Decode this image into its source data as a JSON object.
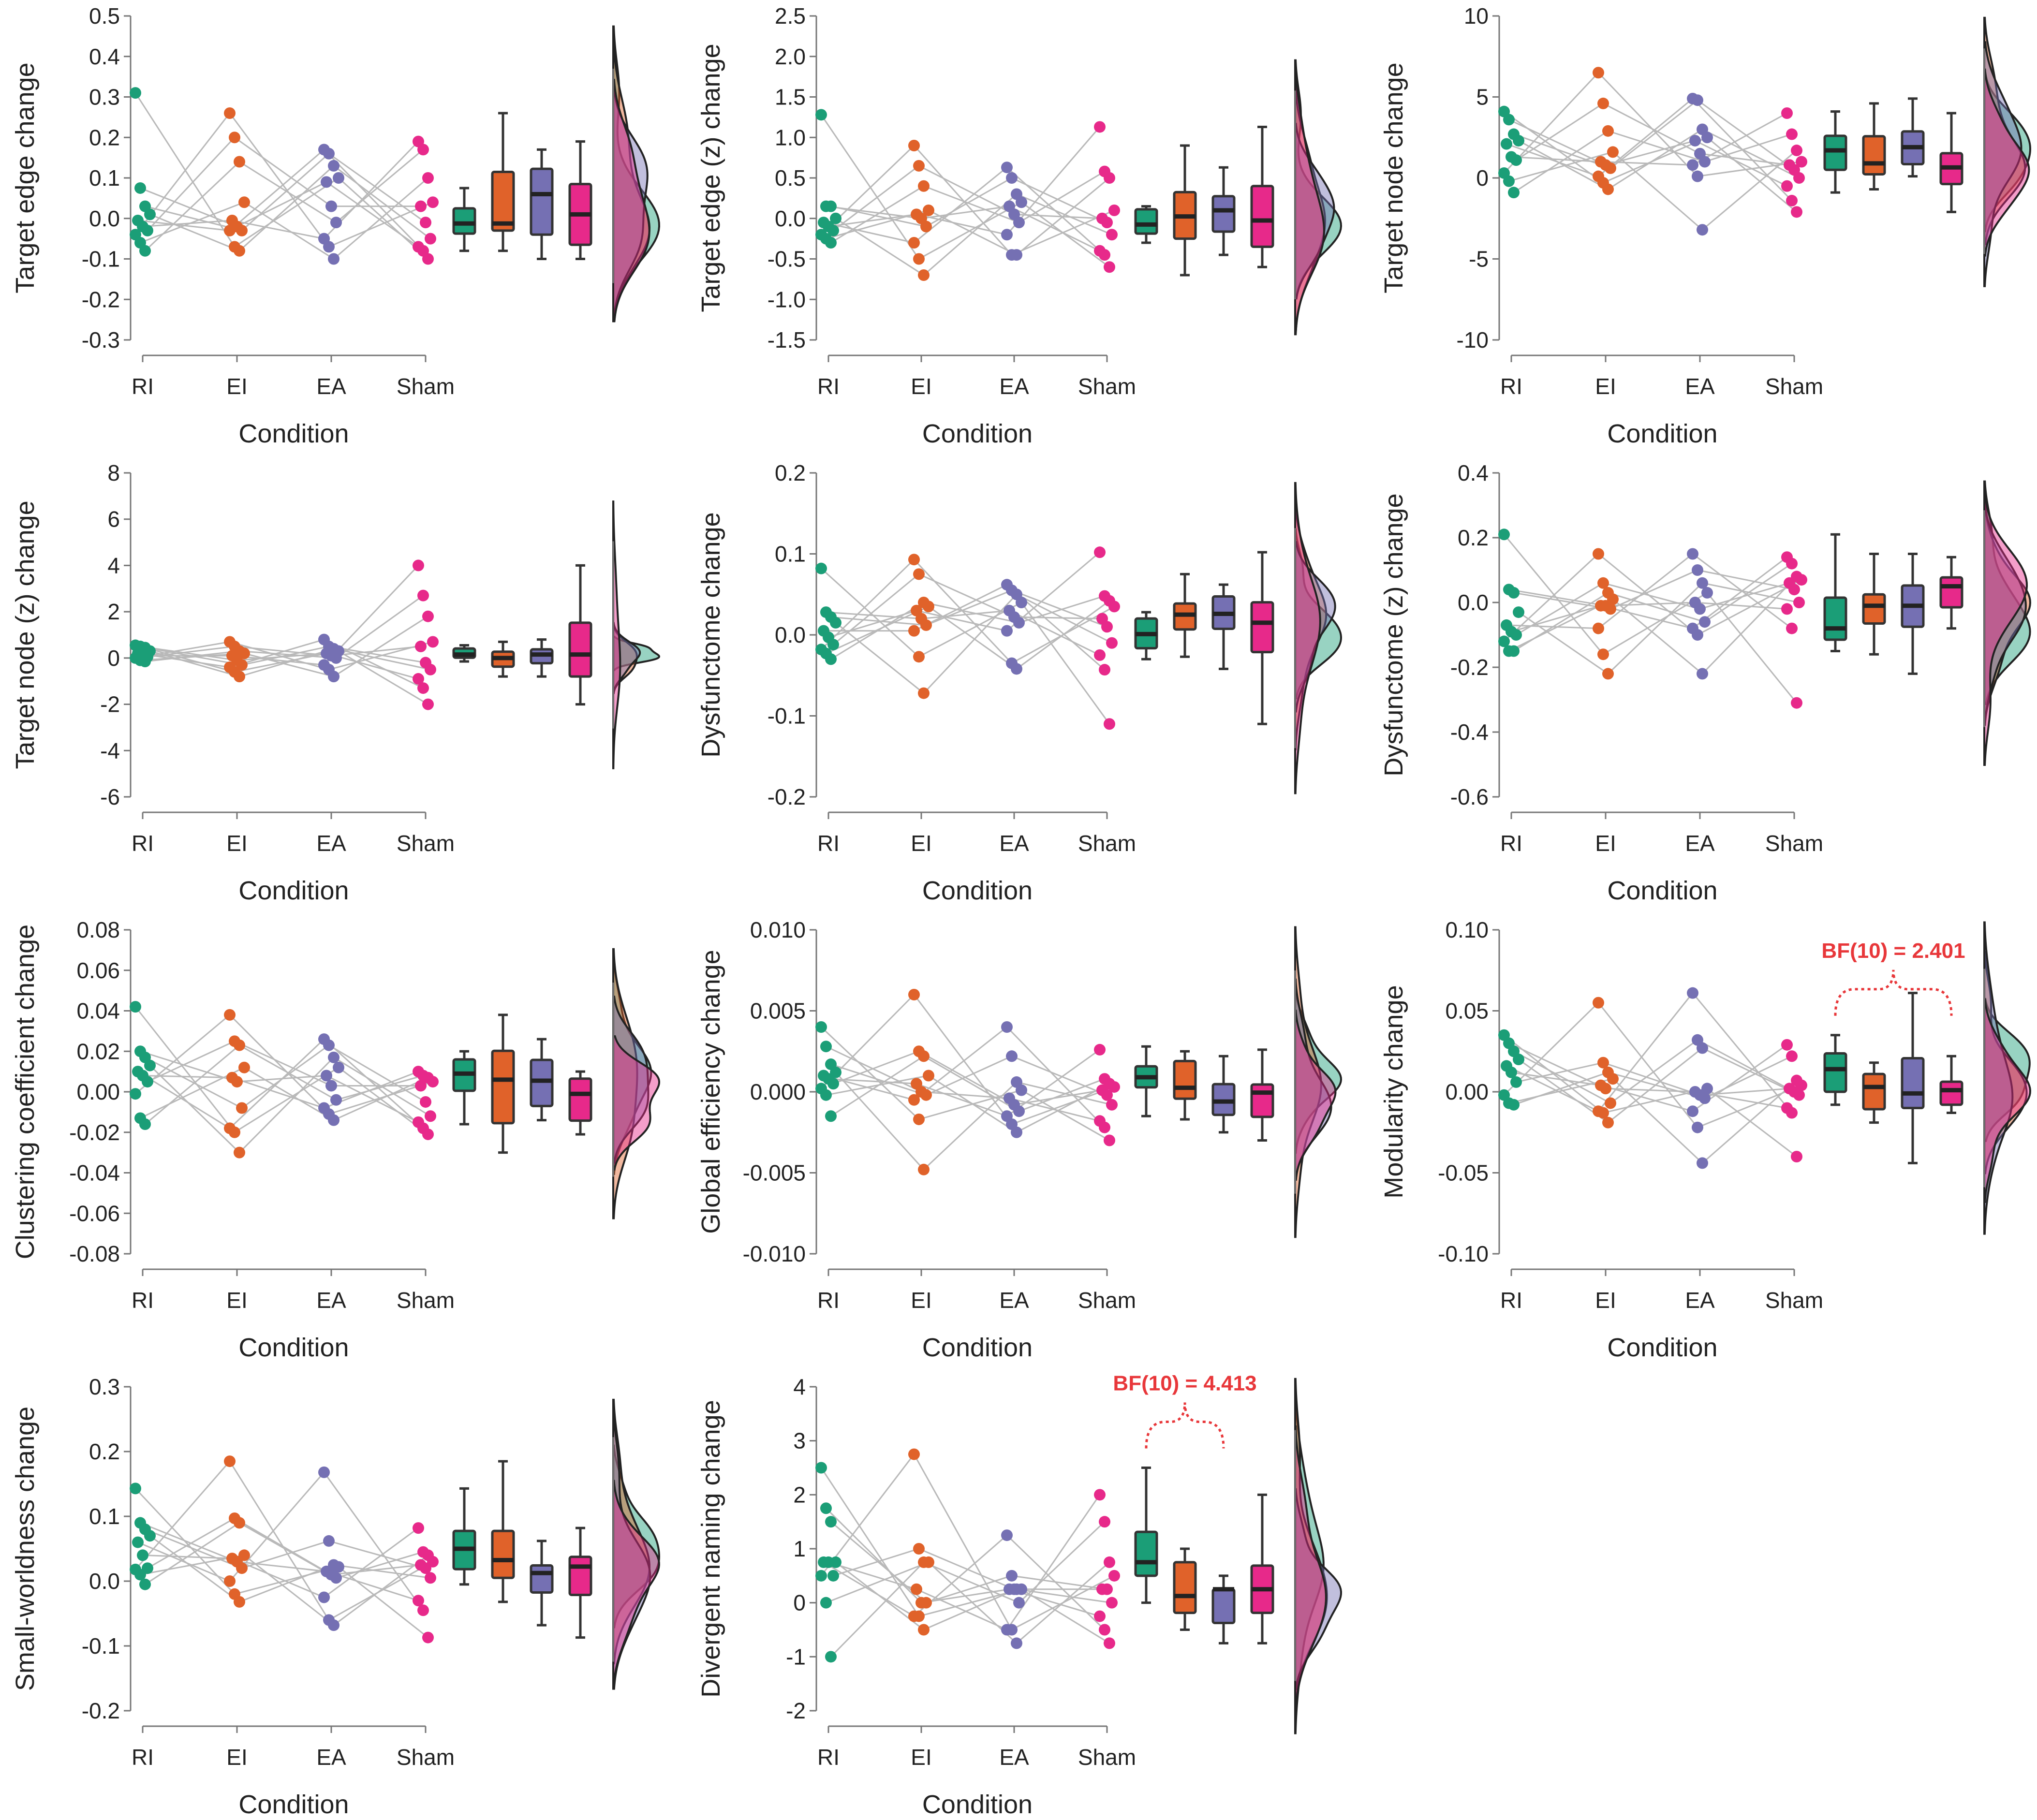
{
  "figure": {
    "x_title": "Condition",
    "conditions": [
      "RI",
      "EI",
      "EA",
      "Sham"
    ],
    "colors": {
      "RI": "#1b9e77",
      "EI": "#e0622a",
      "EA": "#7570b3",
      "Sham": "#e7298a"
    }
  },
  "chart_data": [
    {
      "type": "scatter",
      "title": "",
      "xlabel": "Condition",
      "ylabel": "Target edge change",
      "ylim": [
        -0.3,
        0.5
      ],
      "yticks": [
        -0.3,
        -0.2,
        -0.1,
        0.0,
        0.1,
        0.2,
        0.3,
        0.4,
        0.5
      ],
      "yticklabels": [
        "-0.3",
        "-0.2",
        "-0.1",
        "0.0",
        "0.1",
        "0.2",
        "0.3",
        "0.4",
        "0.5"
      ],
      "categories": [
        "RI",
        "EI",
        "EA",
        "Sham"
      ],
      "series": [
        {
          "name": "RI",
          "values": [
            0.31,
            0.075,
            0.03,
            0.01,
            -0.005,
            -0.02,
            -0.03,
            -0.04,
            -0.06,
            -0.08
          ]
        },
        {
          "name": "EI",
          "values": [
            0.26,
            0.2,
            0.14,
            0.04,
            -0.005,
            -0.02,
            -0.03,
            -0.03,
            -0.07,
            -0.08
          ]
        },
        {
          "name": "EA",
          "values": [
            0.17,
            0.16,
            0.13,
            0.1,
            0.09,
            0.03,
            -0.01,
            -0.05,
            -0.07,
            -0.1
          ]
        },
        {
          "name": "Sham",
          "values": [
            0.19,
            0.17,
            0.1,
            0.04,
            0.03,
            -0.01,
            -0.05,
            -0.07,
            -0.08,
            -0.1
          ]
        }
      ],
      "annotation": null
    },
    {
      "type": "scatter",
      "title": "",
      "xlabel": "Condition",
      "ylabel": "Target edge (z) change",
      "ylim": [
        -1.5,
        2.5
      ],
      "yticks": [
        -1.5,
        -1.0,
        -0.5,
        0.0,
        0.5,
        1.0,
        1.5,
        2.0,
        2.5
      ],
      "yticklabels": [
        "-1.5",
        "-1.0",
        "-0.5",
        "0.0",
        "0.5",
        "1.0",
        "1.5",
        "2.0",
        "2.5"
      ],
      "categories": [
        "RI",
        "EI",
        "EA",
        "Sham"
      ],
      "series": [
        {
          "name": "RI",
          "values": [
            1.28,
            0.15,
            0.15,
            0.0,
            -0.05,
            -0.1,
            -0.15,
            -0.2,
            -0.25,
            -0.3
          ]
        },
        {
          "name": "EI",
          "values": [
            0.9,
            0.65,
            0.4,
            0.1,
            0.05,
            0.0,
            -0.1,
            -0.3,
            -0.5,
            -0.7
          ]
        },
        {
          "name": "EA",
          "values": [
            0.63,
            0.5,
            0.3,
            0.2,
            0.15,
            0.05,
            -0.05,
            -0.2,
            -0.45,
            -0.45
          ]
        },
        {
          "name": "Sham",
          "values": [
            1.13,
            0.58,
            0.5,
            0.1,
            0.0,
            -0.05,
            -0.2,
            -0.4,
            -0.45,
            -0.6
          ]
        }
      ],
      "annotation": null
    },
    {
      "type": "scatter",
      "title": "",
      "xlabel": "Condition",
      "ylabel": "Target node change",
      "ylim": [
        -10,
        10
      ],
      "yticks": [
        -10,
        -5,
        0,
        5,
        10
      ],
      "yticklabels": [
        "-10",
        "-5",
        "0",
        "5",
        "10"
      ],
      "categories": [
        "RI",
        "EI",
        "EA",
        "Sham"
      ],
      "series": [
        {
          "name": "RI",
          "values": [
            4.1,
            3.6,
            2.7,
            2.3,
            2.1,
            1.3,
            1.1,
            0.3,
            -0.2,
            -0.9
          ]
        },
        {
          "name": "EI",
          "values": [
            6.5,
            4.6,
            2.9,
            1.6,
            1.0,
            0.8,
            0.6,
            0.1,
            -0.3,
            -0.7
          ]
        },
        {
          "name": "EA",
          "values": [
            4.9,
            4.8,
            3.0,
            2.5,
            2.3,
            1.5,
            1.0,
            0.8,
            0.1,
            -3.2
          ]
        },
        {
          "name": "Sham",
          "values": [
            4.0,
            2.7,
            1.7,
            1.0,
            0.8,
            0.5,
            0.0,
            -0.5,
            -1.4,
            -2.1
          ]
        }
      ],
      "annotation": null
    },
    {
      "type": "scatter",
      "title": "",
      "xlabel": "Condition",
      "ylabel": "Target node (z) change",
      "ylim": [
        -6,
        8
      ],
      "yticks": [
        -6,
        -4,
        -2,
        0,
        2,
        4,
        6,
        8
      ],
      "yticklabels": [
        "-6",
        "-4",
        "-2",
        "0",
        "2",
        "4",
        "6",
        "8"
      ],
      "categories": [
        "RI",
        "EI",
        "EA",
        "Sham"
      ],
      "series": [
        {
          "name": "RI",
          "values": [
            0.55,
            0.5,
            0.45,
            0.3,
            0.2,
            0.1,
            0.05,
            0.0,
            -0.1,
            -0.15
          ]
        },
        {
          "name": "EI",
          "values": [
            0.7,
            0.5,
            0.3,
            0.2,
            0.1,
            -0.1,
            -0.3,
            -0.4,
            -0.6,
            -0.8
          ]
        },
        {
          "name": "EA",
          "values": [
            0.8,
            0.5,
            0.4,
            0.3,
            0.2,
            0.1,
            0.0,
            -0.3,
            -0.5,
            -0.8
          ]
        },
        {
          "name": "Sham",
          "values": [
            4.0,
            2.7,
            1.8,
            0.7,
            0.5,
            -0.2,
            -0.5,
            -0.9,
            -1.3,
            -2.0
          ]
        }
      ],
      "annotation": null
    },
    {
      "type": "scatter",
      "title": "",
      "xlabel": "Condition",
      "ylabel": "Dysfunctome change",
      "ylim": [
        -0.2,
        0.2
      ],
      "yticks": [
        -0.2,
        -0.1,
        0.0,
        0.1,
        0.2
      ],
      "yticklabels": [
        "-0.2",
        "-0.1",
        "0.0",
        "0.1",
        "0.2"
      ],
      "categories": [
        "RI",
        "EI",
        "EA",
        "Sham"
      ],
      "series": [
        {
          "name": "RI",
          "values": [
            0.082,
            0.028,
            0.022,
            0.015,
            0.005,
            -0.003,
            -0.012,
            -0.018,
            -0.023,
            -0.03
          ]
        },
        {
          "name": "EI",
          "values": [
            0.093,
            0.075,
            0.04,
            0.035,
            0.03,
            0.02,
            0.012,
            0.005,
            -0.027,
            -0.072
          ]
        },
        {
          "name": "EA",
          "values": [
            0.062,
            0.055,
            0.05,
            0.04,
            0.03,
            0.022,
            0.015,
            0.005,
            -0.035,
            -0.042
          ]
        },
        {
          "name": "Sham",
          "values": [
            0.102,
            0.048,
            0.042,
            0.035,
            0.02,
            0.01,
            -0.01,
            -0.025,
            -0.043,
            -0.11
          ]
        }
      ],
      "annotation": null
    },
    {
      "type": "scatter",
      "title": "",
      "xlabel": "Condition",
      "ylabel": "Dysfunctome (z) change",
      "ylim": [
        -0.6,
        0.4
      ],
      "yticks": [
        -0.6,
        -0.4,
        -0.2,
        0.0,
        0.2,
        0.4
      ],
      "yticklabels": [
        "-0.6",
        "-0.4",
        "-0.2",
        "0.0",
        "0.2",
        "0.4"
      ],
      "categories": [
        "RI",
        "EI",
        "EA",
        "Sham"
      ],
      "series": [
        {
          "name": "RI",
          "values": [
            0.21,
            0.04,
            0.03,
            -0.03,
            -0.07,
            -0.09,
            -0.1,
            -0.12,
            -0.15,
            -0.15
          ]
        },
        {
          "name": "EI",
          "values": [
            0.15,
            0.06,
            0.03,
            0.01,
            -0.01,
            -0.01,
            -0.02,
            -0.08,
            -0.16,
            -0.22
          ]
        },
        {
          "name": "EA",
          "values": [
            0.15,
            0.1,
            0.06,
            0.03,
            0.0,
            -0.02,
            -0.06,
            -0.08,
            -0.1,
            -0.22
          ]
        },
        {
          "name": "Sham",
          "values": [
            0.14,
            0.12,
            0.08,
            0.07,
            0.06,
            0.04,
            0.0,
            -0.02,
            -0.08,
            -0.31
          ]
        }
      ],
      "annotation": null
    },
    {
      "type": "scatter",
      "title": "",
      "xlabel": "Condition",
      "ylabel": "Clustering coefficient change",
      "ylim": [
        -0.08,
        0.08
      ],
      "yticks": [
        -0.08,
        -0.06,
        -0.04,
        -0.02,
        0.0,
        0.02,
        0.04,
        0.06,
        0.08
      ],
      "yticklabels": [
        "-0.08",
        "-0.06",
        "-0.04",
        "-0.02",
        "0.00",
        "0.02",
        "0.04",
        "0.06",
        "0.08"
      ],
      "categories": [
        "RI",
        "EI",
        "EA",
        "Sham"
      ],
      "series": [
        {
          "name": "RI",
          "values": [
            0.042,
            0.02,
            0.017,
            0.013,
            0.01,
            0.008,
            0.005,
            -0.001,
            -0.013,
            -0.016
          ]
        },
        {
          "name": "EI",
          "values": [
            0.038,
            0.025,
            0.023,
            0.012,
            0.007,
            0.005,
            -0.008,
            -0.018,
            -0.02,
            -0.03
          ]
        },
        {
          "name": "EA",
          "values": [
            0.026,
            0.023,
            0.017,
            0.012,
            0.008,
            0.003,
            -0.004,
            -0.008,
            -0.011,
            -0.014
          ]
        },
        {
          "name": "Sham",
          "values": [
            0.01,
            0.008,
            0.007,
            0.005,
            0.003,
            -0.005,
            -0.012,
            -0.015,
            -0.018,
            -0.021
          ]
        }
      ],
      "annotation": null
    },
    {
      "type": "scatter",
      "title": "",
      "xlabel": "Condition",
      "ylabel": "Global efficiency change",
      "ylim": [
        -0.01,
        0.01
      ],
      "yticks": [
        -0.01,
        -0.005,
        0.0,
        0.005,
        0.01
      ],
      "yticklabels": [
        "-0.010",
        "-0.005",
        "0.000",
        "0.005",
        "0.010"
      ],
      "categories": [
        "RI",
        "EI",
        "EA",
        "Sham"
      ],
      "series": [
        {
          "name": "RI",
          "values": [
            0.004,
            0.0028,
            0.0017,
            0.0012,
            0.001,
            0.0008,
            0.0005,
            0.0002,
            -0.0002,
            -0.0015
          ]
        },
        {
          "name": "EI",
          "values": [
            0.006,
            0.0025,
            0.0022,
            0.001,
            0.0005,
            0.0,
            -0.0002,
            -0.0005,
            -0.0017,
            -0.0048
          ]
        },
        {
          "name": "EA",
          "values": [
            0.004,
            0.0022,
            0.0006,
            0.0001,
            -0.0004,
            -0.0008,
            -0.0012,
            -0.0015,
            -0.002,
            -0.0025
          ]
        },
        {
          "name": "Sham",
          "values": [
            0.0026,
            0.0008,
            0.0005,
            0.0003,
            0.0001,
            -0.0002,
            -0.0008,
            -0.0018,
            -0.0022,
            -0.003
          ]
        }
      ],
      "annotation": null
    },
    {
      "type": "scatter",
      "title": "",
      "xlabel": "Condition",
      "ylabel": "Modularity change",
      "ylim": [
        -0.1,
        0.1
      ],
      "yticks": [
        -0.1,
        -0.05,
        0.0,
        0.05,
        0.1
      ],
      "yticklabels": [
        "-0.10",
        "-0.05",
        "0.00",
        "0.05",
        "0.10"
      ],
      "categories": [
        "RI",
        "EI",
        "EA",
        "Sham"
      ],
      "series": [
        {
          "name": "RI",
          "values": [
            0.035,
            0.03,
            0.025,
            0.02,
            0.016,
            0.012,
            0.006,
            -0.002,
            -0.007,
            -0.008
          ]
        },
        {
          "name": "EI",
          "values": [
            0.055,
            0.018,
            0.012,
            0.008,
            0.004,
            0.002,
            -0.007,
            -0.012,
            -0.013,
            -0.019
          ]
        },
        {
          "name": "EA",
          "values": [
            0.061,
            0.032,
            0.027,
            0.002,
            0.0,
            -0.002,
            -0.004,
            -0.012,
            -0.022,
            -0.044
          ]
        },
        {
          "name": "Sham",
          "values": [
            0.029,
            0.022,
            0.007,
            0.004,
            0.002,
            0.0,
            -0.002,
            -0.01,
            -0.013,
            -0.04
          ]
        }
      ],
      "annotation": {
        "text": "BF(10) = 2.401",
        "between": [
          "RI",
          "Sham"
        ]
      }
    },
    {
      "type": "scatter",
      "title": "",
      "xlabel": "Condition",
      "ylabel": "Small-worldness change",
      "ylim": [
        -0.2,
        0.3
      ],
      "yticks": [
        -0.2,
        -0.1,
        0.0,
        0.1,
        0.2,
        0.3
      ],
      "yticklabels": [
        "-0.2",
        "-0.1",
        "0.0",
        "0.1",
        "0.2",
        "0.3"
      ],
      "categories": [
        "RI",
        "EI",
        "EA",
        "Sham"
      ],
      "series": [
        {
          "name": "RI",
          "values": [
            0.143,
            0.09,
            0.08,
            0.07,
            0.06,
            0.04,
            0.02,
            0.018,
            0.01,
            -0.005
          ]
        },
        {
          "name": "EI",
          "values": [
            0.185,
            0.097,
            0.09,
            0.04,
            0.035,
            0.03,
            0.02,
            0.0,
            -0.02,
            -0.032
          ]
        },
        {
          "name": "EA",
          "values": [
            0.168,
            0.062,
            0.025,
            0.022,
            0.015,
            0.01,
            0.005,
            -0.025,
            -0.06,
            -0.068
          ]
        },
        {
          "name": "Sham",
          "values": [
            0.082,
            0.045,
            0.04,
            0.03,
            0.025,
            0.02,
            0.005,
            -0.03,
            -0.045,
            -0.087
          ]
        }
      ],
      "annotation": null
    },
    {
      "type": "scatter",
      "title": "",
      "xlabel": "Condition",
      "ylabel": "Divergent naming change",
      "ylim": [
        -2,
        4
      ],
      "yticks": [
        -2,
        -1,
        0,
        1,
        2,
        3,
        4
      ],
      "yticklabels": [
        "-2",
        "-1",
        "0",
        "1",
        "2",
        "3",
        "4"
      ],
      "categories": [
        "RI",
        "EI",
        "EA",
        "Sham"
      ],
      "series": [
        {
          "name": "RI",
          "values": [
            2.5,
            1.75,
            1.5,
            0.75,
            0.75,
            0.75,
            0.5,
            0.5,
            0.0,
            -1.0
          ]
        },
        {
          "name": "EI",
          "values": [
            2.75,
            1.0,
            0.75,
            0.75,
            0.25,
            0.0,
            0.0,
            -0.25,
            -0.25,
            -0.5
          ]
        },
        {
          "name": "EA",
          "values": [
            1.25,
            0.5,
            0.25,
            0.25,
            0.25,
            0.25,
            0.0,
            -0.5,
            -0.5,
            -0.75
          ]
        },
        {
          "name": "Sham",
          "values": [
            2.0,
            1.5,
            0.75,
            0.5,
            0.25,
            0.25,
            0.0,
            -0.25,
            -0.5,
            -0.75
          ]
        }
      ],
      "annotation": {
        "text": "BF(10) = 4.413",
        "between": [
          "RI",
          "EA"
        ]
      }
    }
  ]
}
